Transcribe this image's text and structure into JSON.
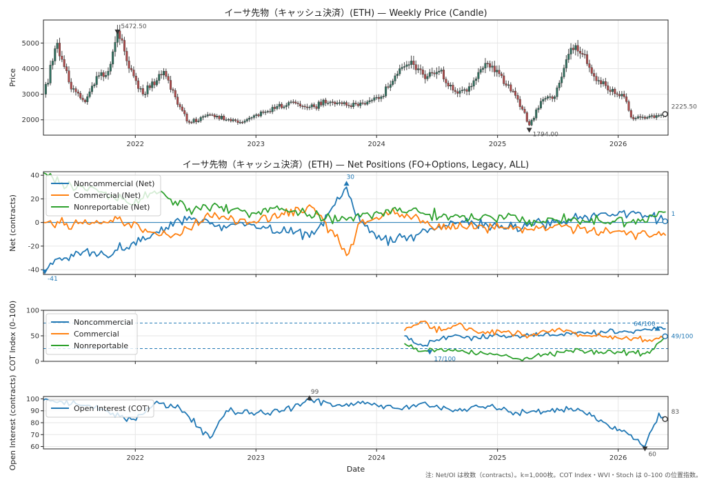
{
  "chart_data": [
    {
      "type": "candlestick",
      "title": "イーサ先物（キャッシュ決済）(ETH) — Weekly Price (Candle)",
      "ylabel": "Price",
      "xlim": [
        "2021-03-29",
        "2026-06-01"
      ],
      "ylim": [
        1400,
        5900
      ],
      "yticks": [
        2000,
        3000,
        4000,
        5000
      ],
      "grid": true,
      "up_color": "#2f6f5e",
      "down_color": "#b04a4a",
      "price_path": [
        [
          "2021-03-29",
          3000
        ],
        [
          "2021-05-10",
          5000
        ],
        [
          "2021-06-21",
          3200
        ],
        [
          "2021-08-02",
          2700
        ],
        [
          "2021-09-06",
          3700
        ],
        [
          "2021-10-11",
          3900
        ],
        [
          "2021-11-08",
          5472.5
        ],
        [
          "2021-12-06",
          4300
        ],
        [
          "2022-01-24",
          3000
        ],
        [
          "2022-03-28",
          3900
        ],
        [
          "2022-05-09",
          2600
        ],
        [
          "2022-06-13",
          1900
        ],
        [
          "2022-08-08",
          2200
        ],
        [
          "2022-10-03",
          2000
        ],
        [
          "2022-11-21",
          1900
        ],
        [
          "2023-01-02",
          2200
        ],
        [
          "2023-04-17",
          2700
        ],
        [
          "2023-06-12",
          2500
        ],
        [
          "2023-08-14",
          2700
        ],
        [
          "2023-10-09",
          2550
        ],
        [
          "2023-12-04",
          2700
        ],
        [
          "2024-01-15",
          2900
        ],
        [
          "2024-03-11",
          4000
        ],
        [
          "2024-04-15",
          4300
        ],
        [
          "2024-05-27",
          3600
        ],
        [
          "2024-07-08",
          3900
        ],
        [
          "2024-08-26",
          3100
        ],
        [
          "2024-10-07",
          3300
        ],
        [
          "2024-12-02",
          4200
        ],
        [
          "2025-01-06",
          3800
        ],
        [
          "2025-03-03",
          2800
        ],
        [
          "2025-04-07",
          1794
        ],
        [
          "2025-05-19",
          2800
        ],
        [
          "2025-06-23",
          2900
        ],
        [
          "2025-08-11",
          4800
        ],
        [
          "2025-09-08",
          4600
        ],
        [
          "2025-10-20",
          3700
        ],
        [
          "2025-12-08",
          3100
        ],
        [
          "2026-01-19",
          2900
        ],
        [
          "2026-02-09",
          2100
        ],
        [
          "2026-04-06",
          2150
        ],
        [
          "2026-05-25",
          2225.5
        ]
      ],
      "annotations": [
        {
          "label": "5472.50",
          "date": "2021-11-08",
          "value": 5472.5,
          "kind": "max"
        },
        {
          "label": "1794.00",
          "date": "2025-04-07",
          "value": 1794,
          "kind": "min"
        },
        {
          "label": "2225.50",
          "date": "2026-05-25",
          "value": 2225.5,
          "kind": "last"
        }
      ]
    },
    {
      "type": "line",
      "title": "イーサ先物（キャッシュ決済）(ETH) — Net Positions (FO+Options, Legacy, ALL)",
      "ylabel": "Net (contracts)",
      "xlim": [
        "2021-03-29",
        "2026-06-01"
      ],
      "ylim": [
        -44,
        43
      ],
      "yticks": [
        -40,
        -20,
        0,
        20,
        40
      ],
      "zero_line": true,
      "grid": true,
      "legend": "top-left",
      "series": [
        {
          "name": "Noncommercial (Net)",
          "color": "#1f77b4",
          "points": [
            [
              "2021-03-29",
              -41
            ],
            [
              "2021-05-17",
              -30
            ],
            [
              "2021-07-26",
              -25
            ],
            [
              "2021-10-04",
              -28
            ],
            [
              "2021-12-20",
              -18
            ],
            [
              "2022-03-07",
              -8
            ],
            [
              "2022-06-13",
              5
            ],
            [
              "2022-09-05",
              -3
            ],
            [
              "2022-12-19",
              -2
            ],
            [
              "2023-03-20",
              -8
            ],
            [
              "2023-06-26",
              -10
            ],
            [
              "2023-08-14",
              10
            ],
            [
              "2023-10-02",
              30
            ],
            [
              "2023-11-13",
              0
            ],
            [
              "2024-01-15",
              -15
            ],
            [
              "2024-04-08",
              -12
            ],
            [
              "2024-06-17",
              -5
            ],
            [
              "2024-09-02",
              0
            ],
            [
              "2024-12-16",
              -3
            ],
            [
              "2025-03-17",
              -5
            ],
            [
              "2025-06-23",
              0
            ],
            [
              "2025-09-08",
              5
            ],
            [
              "2025-12-15",
              7
            ],
            [
              "2026-03-09",
              8
            ],
            [
              "2026-05-25",
              1
            ]
          ]
        },
        {
          "name": "Commercial (Net)",
          "color": "#ff7f0e",
          "points": [
            [
              "2021-03-29",
              0
            ],
            [
              "2021-07-26",
              -1
            ],
            [
              "2021-11-08",
              3
            ],
            [
              "2022-02-07",
              -8
            ],
            [
              "2022-05-09",
              -10
            ],
            [
              "2022-08-15",
              5
            ],
            [
              "2022-12-19",
              0
            ],
            [
              "2023-03-20",
              8
            ],
            [
              "2023-06-26",
              12
            ],
            [
              "2023-08-28",
              -12
            ],
            [
              "2023-10-02",
              -28
            ],
            [
              "2023-11-13",
              0
            ],
            [
              "2024-02-12",
              8
            ],
            [
              "2024-04-22",
              5
            ],
            [
              "2024-07-01",
              -5
            ],
            [
              "2024-10-07",
              -3
            ],
            [
              "2025-01-13",
              -4
            ],
            [
              "2025-05-05",
              -5
            ],
            [
              "2025-09-08",
              -5
            ],
            [
              "2025-12-15",
              -8
            ],
            [
              "2026-03-09",
              -9
            ],
            [
              "2026-05-25",
              -11
            ]
          ]
        },
        {
          "name": "Nonreportable (Net)",
          "color": "#2ca02c",
          "points": [
            [
              "2021-03-29",
              42
            ],
            [
              "2021-06-07",
              30
            ],
            [
              "2021-09-06",
              28
            ],
            [
              "2021-12-20",
              15
            ],
            [
              "2022-02-21",
              25
            ],
            [
              "2022-06-13",
              12
            ],
            [
              "2022-09-05",
              15
            ],
            [
              "2022-12-19",
              8
            ],
            [
              "2023-03-20",
              12
            ],
            [
              "2023-06-26",
              5
            ],
            [
              "2023-10-02",
              2
            ],
            [
              "2024-01-15",
              8
            ],
            [
              "2024-04-08",
              10
            ],
            [
              "2024-08-12",
              5
            ],
            [
              "2024-12-16",
              4
            ],
            [
              "2025-04-07",
              2
            ],
            [
              "2025-08-11",
              1
            ],
            [
              "2025-12-15",
              1
            ],
            [
              "2026-03-09",
              1
            ],
            [
              "2026-05-25",
              9
            ]
          ]
        }
      ],
      "annotations": [
        {
          "label": "30",
          "date": "2023-10-02",
          "value": 30,
          "kind": "max"
        },
        {
          "label": "-41",
          "date": "2021-03-29",
          "value": -41,
          "kind": "min"
        },
        {
          "label": "1",
          "date": "2026-05-25",
          "value": 1,
          "kind": "last"
        }
      ]
    },
    {
      "type": "line",
      "ylabel": "COT Index (0–100)",
      "xlim": [
        "2021-03-29",
        "2026-06-01"
      ],
      "ylim": [
        0,
        100
      ],
      "yticks": [
        0,
        50,
        100
      ],
      "reference_lines": [
        75,
        25
      ],
      "grid": true,
      "legend": "top-left",
      "series": [
        {
          "name": "Noncommercial",
          "color": "#1f77b4",
          "points": [
            [
              "2024-03-25",
              50
            ],
            [
              "2024-05-20",
              30
            ],
            [
              "2024-07-15",
              45
            ],
            [
              "2024-09-09",
              50
            ],
            [
              "2024-11-04",
              45
            ],
            [
              "2025-01-06",
              50
            ],
            [
              "2025-04-07",
              50
            ],
            [
              "2025-07-07",
              52
            ],
            [
              "2025-10-06",
              55
            ],
            [
              "2026-01-05",
              58
            ],
            [
              "2026-04-06",
              62
            ],
            [
              "2026-05-25",
              64
            ]
          ]
        },
        {
          "name": "Commercial",
          "color": "#ff7f0e",
          "points": [
            [
              "2024-03-25",
              60
            ],
            [
              "2024-05-20",
              78
            ],
            [
              "2024-07-15",
              60
            ],
            [
              "2024-09-09",
              75
            ],
            [
              "2024-11-04",
              55
            ],
            [
              "2025-01-06",
              60
            ],
            [
              "2025-04-07",
              50
            ],
            [
              "2025-07-07",
              65
            ],
            [
              "2025-10-06",
              50
            ],
            [
              "2026-01-05",
              45
            ],
            [
              "2026-04-06",
              42
            ],
            [
              "2026-05-25",
              49
            ]
          ]
        },
        {
          "name": "Nonreportable",
          "color": "#2ca02c",
          "points": [
            [
              "2024-03-25",
              35
            ],
            [
              "2024-05-20",
              20
            ],
            [
              "2024-07-15",
              25
            ],
            [
              "2024-09-09",
              20
            ],
            [
              "2024-11-04",
              15
            ],
            [
              "2025-01-06",
              12
            ],
            [
              "2025-04-07",
              5
            ],
            [
              "2025-07-07",
              18
            ],
            [
              "2025-10-06",
              20
            ],
            [
              "2026-01-05",
              18
            ],
            [
              "2026-04-06",
              16
            ],
            [
              "2026-05-25",
              50
            ]
          ]
        }
      ],
      "annotations": [
        {
          "label": "64/100",
          "date": "2026-05-25",
          "value": 64
        },
        {
          "label": "49/100",
          "date": "2026-05-25",
          "value": 49
        },
        {
          "label": "17/100",
          "date": "2024-06-10",
          "value": 17
        }
      ]
    },
    {
      "type": "line",
      "ylabel": "Open Interest (contracts)",
      "xlabel": "Date",
      "xlim": [
        "2021-03-29",
        "2026-06-01"
      ],
      "ylim": [
        58,
        102
      ],
      "yticks": [
        60,
        70,
        80,
        90,
        100
      ],
      "xticks": [
        "2022",
        "2023",
        "2024",
        "2025",
        "2026"
      ],
      "grid": true,
      "legend": "top-left",
      "series": [
        {
          "name": "Open Interest (COT)",
          "color": "#1f77b4",
          "points": [
            [
              "2021-03-29",
              99
            ],
            [
              "2021-07-05",
              96
            ],
            [
              "2021-10-04",
              90
            ],
            [
              "2022-01-03",
              82
            ],
            [
              "2022-03-07",
              98
            ],
            [
              "2022-05-16",
              92
            ],
            [
              "2022-08-15",
              67
            ],
            [
              "2022-10-03",
              90
            ],
            [
              "2023-01-02",
              88
            ],
            [
              "2023-03-27",
              90
            ],
            [
              "2023-06-12",
              99
            ],
            [
              "2023-09-04",
              95
            ],
            [
              "2023-12-04",
              97
            ],
            [
              "2024-03-04",
              92
            ],
            [
              "2024-06-03",
              95
            ],
            [
              "2024-09-02",
              90
            ],
            [
              "2024-12-02",
              94
            ],
            [
              "2025-03-03",
              88
            ],
            [
              "2025-06-02",
              90
            ],
            [
              "2025-09-01",
              92
            ],
            [
              "2025-12-01",
              78
            ],
            [
              "2026-02-02",
              70
            ],
            [
              "2026-03-23",
              60
            ],
            [
              "2026-05-04",
              88
            ],
            [
              "2026-05-25",
              83
            ]
          ]
        }
      ],
      "annotations": [
        {
          "label": "99",
          "date": "2023-06-12",
          "value": 99,
          "kind": "max"
        },
        {
          "label": "60",
          "date": "2026-03-23",
          "value": 60,
          "kind": "min"
        },
        {
          "label": "83",
          "date": "2026-05-25",
          "value": 83,
          "kind": "last"
        }
      ]
    }
  ],
  "footnote": "注: Net/OI は枚数（contracts）。k=1,000枚。COT Index・WVI・Stoch は 0–100 の位置指数。"
}
